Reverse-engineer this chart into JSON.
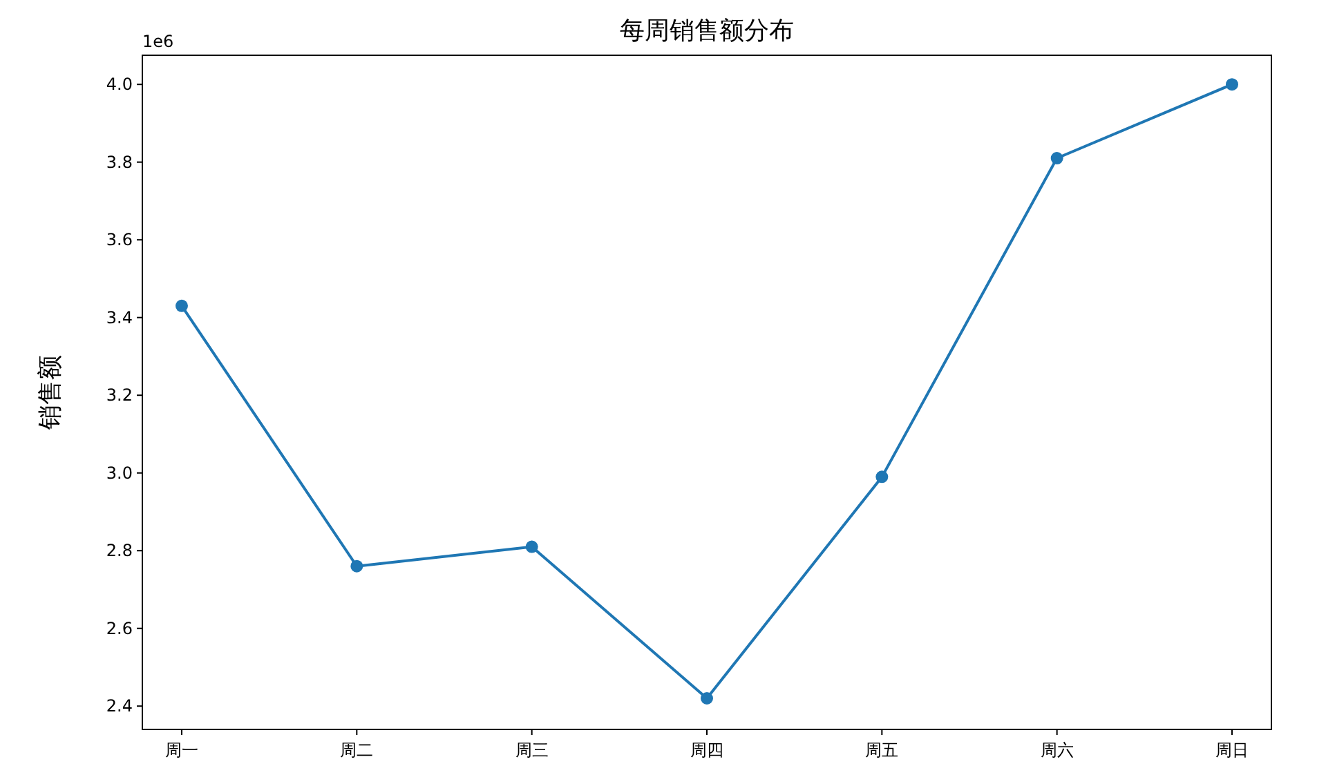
{
  "chart_data": {
    "type": "line",
    "title": "每周销售额分布",
    "ylabel": "销售额",
    "categories": [
      "周一",
      "周二",
      "周三",
      "周四",
      "周五",
      "周六",
      "周日"
    ],
    "series": [
      {
        "color": "#1f77b4",
        "values": [
          3.43,
          2.76,
          2.81,
          2.42,
          2.99,
          3.81,
          4.0
        ]
      }
    ],
    "ylim": [
      2.34,
      4.075
    ],
    "yticks": [
      2.4,
      2.6,
      2.8,
      {
        "value": 3,
        "label": "3.0"
      },
      3.2,
      3.4,
      3.6,
      3.8,
      {
        "value": 4,
        "label": "4.0"
      }
    ],
    "annotations": [
      "1e6"
    ],
    "marker": "circle",
    "line_style": "solid"
  }
}
